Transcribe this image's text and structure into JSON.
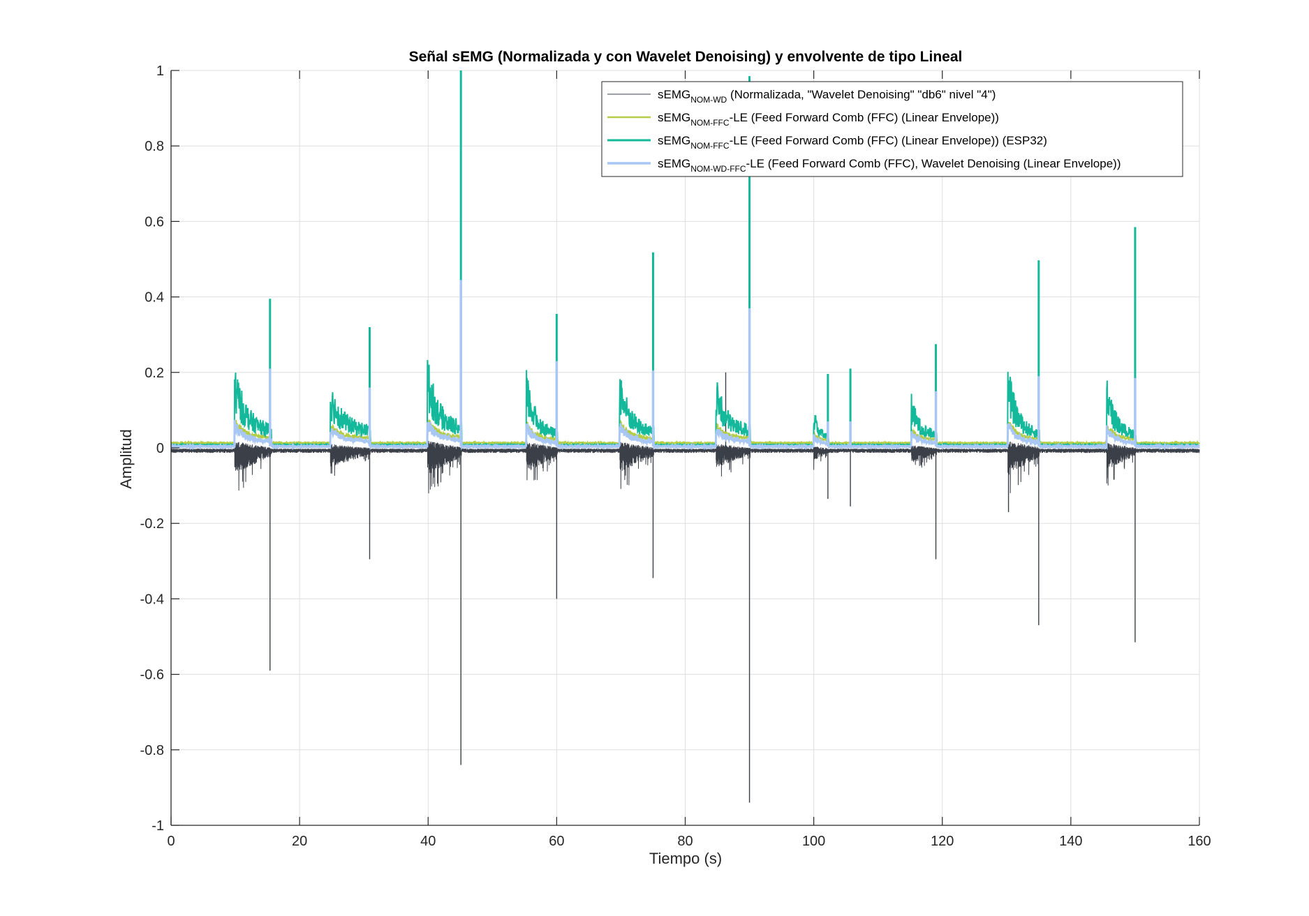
{
  "chart_data": {
    "type": "line",
    "title": "Señal sEMG (Normalizada y con Wavelet Denoising) y envolvente de tipo Lineal",
    "xlabel": "Tiempo (s)",
    "ylabel": "Amplitud",
    "xlim": [
      0,
      160
    ],
    "ylim": [
      -1,
      1
    ],
    "x_ticks": [
      "0",
      "20",
      "40",
      "60",
      "80",
      "100",
      "120",
      "140",
      "160"
    ],
    "y_ticks": [
      "1",
      "0.8",
      "0.6",
      "0.4",
      "0.2",
      "0",
      "-0.2",
      "-0.4",
      "-0.6",
      "-0.8",
      "-1"
    ],
    "grid": true,
    "legend_position": "top-right",
    "series": [
      {
        "name": "sEMG_NOM-WD (Normalizada, \"Wavelet Denoising\" \"db6\" nivel \"4\")",
        "legend_main": "sEMG",
        "legend_sub": "NOM-WD",
        "legend_rest": " (Normalizada, \"Wavelet Denoising\" \"db6\" nivel \"4\")",
        "color": "#3a3f48",
        "style": "raw",
        "baseline": -0.005,
        "spikes": [
          {
            "x": 15.4,
            "y": -0.59
          },
          {
            "x": 30.9,
            "y": -0.295
          },
          {
            "x": 45.1,
            "y": -0.84
          },
          {
            "x": 60.0,
            "y": -0.4
          },
          {
            "x": 75.0,
            "y": -0.345
          },
          {
            "x": 86.3,
            "y": 0.2
          },
          {
            "x": 90.0,
            "y": -0.94
          },
          {
            "x": 102.2,
            "y": -0.135
          },
          {
            "x": 105.7,
            "y": -0.155
          },
          {
            "x": 119.0,
            "y": -0.295
          },
          {
            "x": 130.3,
            "y": -0.17
          },
          {
            "x": 135.0,
            "y": -0.47
          },
          {
            "x": 150.0,
            "y": -0.515
          }
        ]
      },
      {
        "name": "sEMG_NOM-FFC-LE (Feed Forward Comb (FFC) (Linear Envelope))",
        "legend_main": "sEMG",
        "legend_sub": "NOM-FFC",
        "legend_rest": "-LE (Feed Forward Comb (FFC) (Linear Envelope))",
        "color": "#b5cd45",
        "style": "envelope",
        "baseline": 0.013
      },
      {
        "name": "sEMG_NOM-FFC-LE (Feed Forward Comb (FFC) (Linear Envelope)) (ESP32)",
        "legend_main": "sEMG",
        "legend_sub": "NOM-FFC",
        "legend_rest": "-LE (Feed Forward Comb (FFC) (Linear Envelope)) (ESP32)",
        "color": "#13b99a",
        "style": "envelope",
        "baseline": 0.008,
        "peaks": [
          {
            "x": 15.4,
            "y": 0.395
          },
          {
            "x": 30.9,
            "y": 0.32
          },
          {
            "x": 45.1,
            "y": 1.0
          },
          {
            "x": 60.0,
            "y": 0.355
          },
          {
            "x": 75.0,
            "y": 0.518
          },
          {
            "x": 90.0,
            "y": 0.985
          },
          {
            "x": 102.2,
            "y": 0.196
          },
          {
            "x": 105.7,
            "y": 0.21
          },
          {
            "x": 119.0,
            "y": 0.275
          },
          {
            "x": 135.0,
            "y": 0.497
          },
          {
            "x": 150.0,
            "y": 0.585
          }
        ]
      },
      {
        "name": "sEMG_NOM-WD-FFC-LE (Feed Forward Comb (FFC), Wavelet Denoising (Linear Envelope))",
        "legend_main": "sEMG",
        "legend_sub": "NOM-WD-FFC",
        "legend_rest": "-LE (Feed Forward Comb (FFC), Wavelet Denoising (Linear Envelope))",
        "color": "#a9c7f5",
        "style": "envelope",
        "baseline": 0.004,
        "peaks": [
          {
            "x": 15.4,
            "y": 0.21
          },
          {
            "x": 30.9,
            "y": 0.16
          },
          {
            "x": 45.1,
            "y": 0.445
          },
          {
            "x": 60.0,
            "y": 0.23
          },
          {
            "x": 75.0,
            "y": 0.205
          },
          {
            "x": 90.0,
            "y": 0.37
          },
          {
            "x": 102.2,
            "y": 0.07
          },
          {
            "x": 105.7,
            "y": 0.07
          },
          {
            "x": 119.0,
            "y": 0.15
          },
          {
            "x": 135.0,
            "y": 0.19
          },
          {
            "x": 150.0,
            "y": 0.185
          }
        ]
      }
    ],
    "activity_bursts": [
      {
        "start": 9.9,
        "end": 15.6,
        "level": 0.12,
        "tail": 0.035
      },
      {
        "start": 24.8,
        "end": 31.0,
        "level": 0.085,
        "tail": 0.035
      },
      {
        "start": 39.9,
        "end": 45.2,
        "level": 0.127,
        "tail": 0.04
      },
      {
        "start": 55.3,
        "end": 60.1,
        "level": 0.115,
        "tail": 0.025
      },
      {
        "start": 69.8,
        "end": 75.1,
        "level": 0.115,
        "tail": 0.03
      },
      {
        "start": 84.8,
        "end": 90.1,
        "level": 0.09,
        "tail": 0.035
      },
      {
        "start": 100.0,
        "end": 102.3,
        "level": 0.055,
        "tail": 0.02
      },
      {
        "start": 115.2,
        "end": 119.1,
        "level": 0.07,
        "tail": 0.025
      },
      {
        "start": 130.2,
        "end": 135.1,
        "level": 0.128,
        "tail": 0.025
      },
      {
        "start": 145.6,
        "end": 150.1,
        "level": 0.1,
        "tail": 0.025
      }
    ]
  }
}
